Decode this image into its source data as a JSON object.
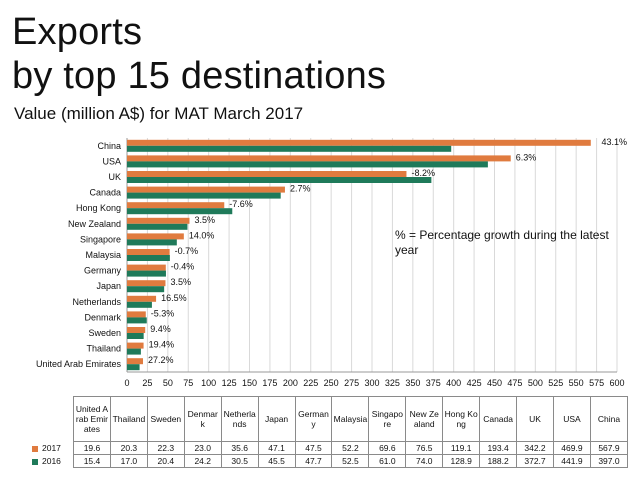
{
  "header": {
    "title_line1": "Exports",
    "title_line2": "by top 15 destinations",
    "subtitle": "Value (million A$) for MAT March 2017"
  },
  "note": "% = Percentage growth during the latest year",
  "colors": {
    "series_2017": "#e07b3f",
    "series_2016": "#1f7a5a",
    "grid": "#d9d9d9",
    "axis": "#999999"
  },
  "chart_data": {
    "type": "bar",
    "orientation": "horizontal",
    "categories": [
      "China",
      "USA",
      "UK",
      "Canada",
      "Hong Kong",
      "New Zealand",
      "Singapore",
      "Malaysia",
      "Germany",
      "Japan",
      "Netherlands",
      "Denmark",
      "Sweden",
      "Thailand",
      "United Arab Emirates"
    ],
    "series": [
      {
        "name": "2017",
        "values": [
          567.9,
          469.9,
          342.2,
          193.4,
          119.1,
          76.5,
          69.6,
          52.2,
          47.5,
          47.1,
          35.6,
          23.0,
          22.3,
          20.3,
          19.6
        ]
      },
      {
        "name": "2016",
        "values": [
          397.0,
          441.9,
          372.7,
          188.2,
          128.9,
          74.0,
          61.0,
          52.5,
          47.7,
          45.5,
          30.5,
          24.2,
          20.4,
          17.0,
          15.4
        ]
      }
    ],
    "growth_labels": [
      "43.1%",
      "6.3%",
      "-8.2%",
      "2.7%",
      "-7.6%",
      "3.5%",
      "14.0%",
      "-0.7%",
      "-0.4%",
      "3.5%",
      "16.5%",
      "-5.3%",
      "9.4%",
      "19.4%",
      "27.2%"
    ],
    "xlim": [
      0,
      600
    ],
    "xticks": [
      0,
      25,
      50,
      75,
      100,
      125,
      150,
      175,
      200,
      225,
      250,
      275,
      300,
      325,
      350,
      375,
      400,
      425,
      450,
      475,
      500,
      525,
      550,
      575,
      600
    ],
    "grid": true
  },
  "table": {
    "columns": [
      "United Arab Emirates",
      "Thailand",
      "Sweden",
      "Denmark",
      "Netherlands",
      "Japan",
      "Germany",
      "Malaysia",
      "Singapore",
      "New Zealand",
      "Hong Kong",
      "Canada",
      "UK",
      "USA",
      "China"
    ],
    "rows": [
      {
        "label": "2017",
        "values": [
          "19.6",
          "20.3",
          "22.3",
          "23.0",
          "35.6",
          "47.1",
          "47.5",
          "52.2",
          "69.6",
          "76.5",
          "119.1",
          "193.4",
          "342.2",
          "469.9",
          "567.9"
        ]
      },
      {
        "label": "2016",
        "values": [
          "15.4",
          "17.0",
          "20.4",
          "24.2",
          "30.5",
          "45.5",
          "47.7",
          "52.5",
          "61.0",
          "74.0",
          "128.9",
          "188.2",
          "372.7",
          "441.9",
          "397.0"
        ]
      }
    ]
  }
}
